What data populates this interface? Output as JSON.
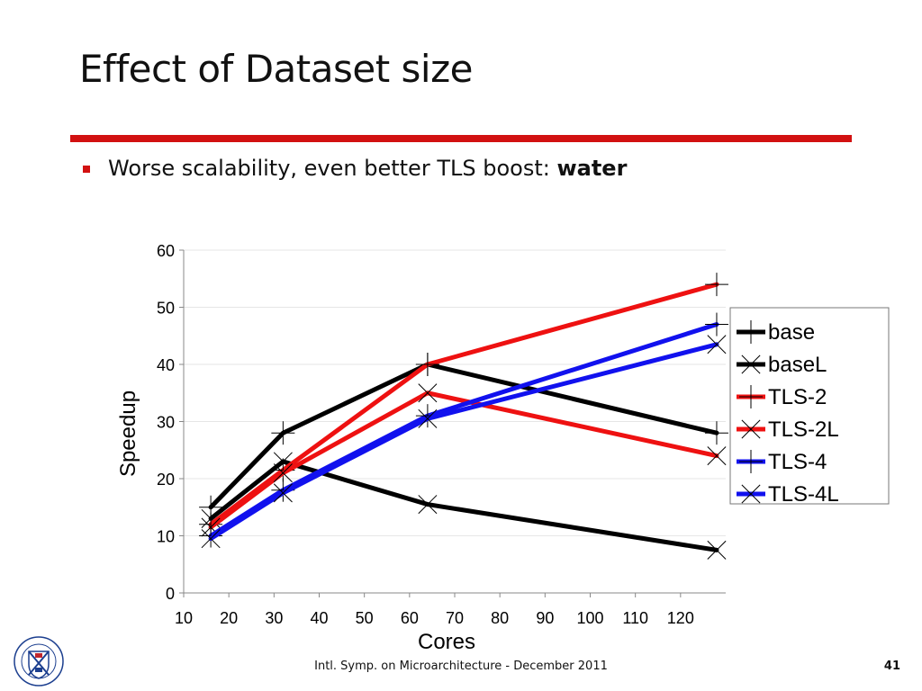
{
  "slide": {
    "title": "Effect of Dataset size",
    "bullet_text": "Worse scalability, even better TLS boost: ",
    "bullet_bold": "water"
  },
  "footer": {
    "text": "Intl. Symp. on Microarchitecture - December 2011",
    "page_number": "41"
  },
  "logo": {
    "icon": "university-seal-icon",
    "text": "THE UNIVERSITY OF EDINBURGH"
  },
  "chart_data": {
    "type": "line",
    "title": "",
    "xlabel": "Cores",
    "ylabel": "Speedup",
    "xlim": [
      10,
      130
    ],
    "ylim": [
      0,
      60
    ],
    "x_ticks": [
      10,
      20,
      30,
      40,
      50,
      60,
      70,
      80,
      90,
      100,
      110,
      120
    ],
    "y_ticks": [
      0,
      10,
      20,
      30,
      40,
      50,
      60
    ],
    "grid": "horizontal",
    "legend_position": "right",
    "x": [
      16,
      32,
      64,
      128
    ],
    "series": [
      {
        "name": "base",
        "color": "#000000",
        "marker": "plus",
        "values": [
          15,
          28,
          40,
          28
        ]
      },
      {
        "name": "baseL",
        "color": "#000000",
        "marker": "cross",
        "values": [
          13,
          23,
          15.5,
          7.5
        ]
      },
      {
        "name": "TLS-2",
        "color": "#ee1111",
        "marker": "plus",
        "values": [
          12,
          21.5,
          40,
          54
        ]
      },
      {
        "name": "TLS-2L",
        "color": "#ee1111",
        "marker": "cross",
        "values": [
          11.5,
          21,
          35,
          24
        ]
      },
      {
        "name": "TLS-4",
        "color": "#1111ee",
        "marker": "plus",
        "values": [
          10,
          18,
          31,
          47
        ]
      },
      {
        "name": "TLS-4L",
        "color": "#1111ee",
        "marker": "cross",
        "values": [
          9.5,
          17.5,
          30.5,
          43.5
        ]
      }
    ]
  }
}
